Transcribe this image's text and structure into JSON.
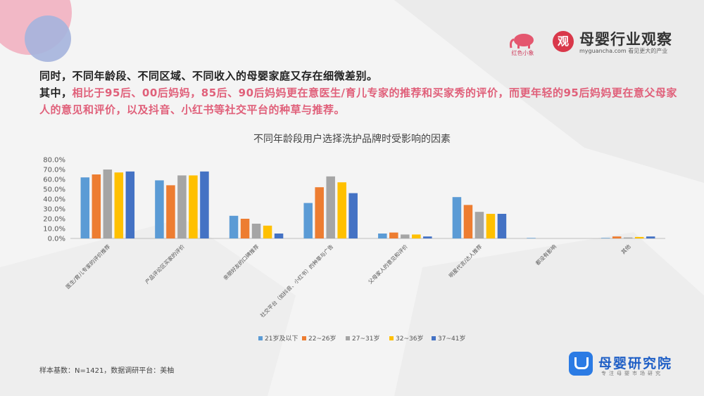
{
  "intro": {
    "line1": "同时，不同年龄段、不同区域、不同收入的母婴家庭又存在细微差别。",
    "line2_prefix": "其中，",
    "line2_highlight": "相比于95后、00后妈妈，85后、90后妈妈更在意医生/育儿专家的推荐和买家秀的评价，而更年轻的95后妈妈更在意父母家人的意见和评价，以及抖音、小红书等社交平台的种草与推荐。"
  },
  "brand": {
    "logo_char": "观",
    "name": "母婴行业观察",
    "url": "myguancha.com",
    "tagline": "看见更大的产业",
    "left_logo_text": "红色小象"
  },
  "institute": {
    "name": "母婴研究院",
    "subtitle": "专注母婴市场研究"
  },
  "footer": {
    "note": "样本基数：N=1421，数据调研平台：美柚"
  },
  "colors": {
    "accent_pink": "#e0607a",
    "series": [
      "#5b9bd5",
      "#ed7d31",
      "#a5a5a5",
      "#ffc000",
      "#4472c4"
    ]
  },
  "chart_data": {
    "type": "bar",
    "title": "不同年龄段用户选择洗护品牌时受影响的因素",
    "categories": [
      "医生/育儿专家的评价推荐",
      "产品评论区买家的评价",
      "亲朋好友的口碑推荐",
      "社交平台（如抖音、小红书）的种草与广告",
      "父母家人的意见和评价",
      "明星代言/达人推荐",
      "都没有影响",
      "其他"
    ],
    "series": [
      {
        "name": "21岁及以下",
        "values": [
          62,
          59,
          23,
          36,
          5,
          42,
          0.5,
          0.5
        ]
      },
      {
        "name": "22~26岁",
        "values": [
          65,
          54,
          20,
          52,
          6,
          34,
          0,
          2
        ]
      },
      {
        "name": "27~31岁",
        "values": [
          70,
          64,
          15,
          63,
          4,
          27,
          0,
          1
        ]
      },
      {
        "name": "32~36岁",
        "values": [
          67,
          64,
          13,
          57,
          4,
          25,
          0,
          1.5
        ]
      },
      {
        "name": "37~41岁",
        "values": [
          68,
          68,
          5,
          46,
          2,
          25,
          0,
          2
        ]
      }
    ],
    "yticks": [
      "0.0%",
      "10.0%",
      "20.0%",
      "30.0%",
      "40.0%",
      "50.0%",
      "60.0%",
      "70.0%",
      "80.0%"
    ],
    "ylim": [
      0,
      80
    ],
    "legend_position": "bottom"
  }
}
